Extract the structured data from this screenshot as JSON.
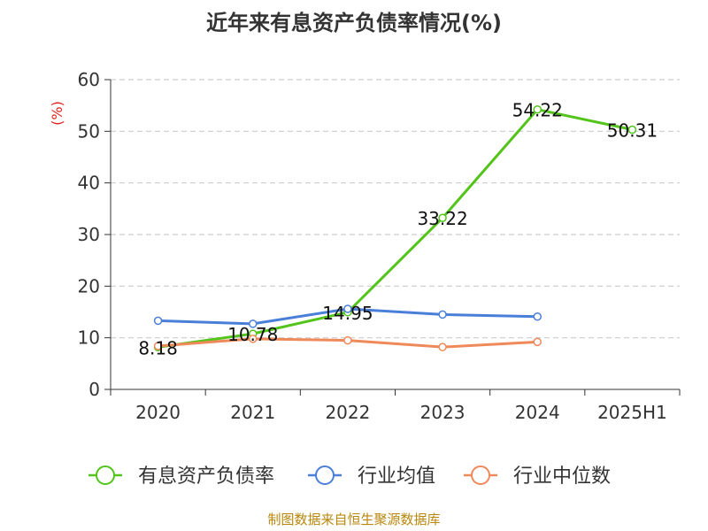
{
  "chart_data": {
    "type": "line",
    "title": "近年来有息资产负债率情况(%)",
    "ylabel": "(%)",
    "xlabel": "",
    "categories": [
      "2020",
      "2021",
      "2022",
      "2023",
      "2024",
      "2025H1"
    ],
    "ylim": [
      0,
      60
    ],
    "yticks": [
      0,
      10,
      20,
      30,
      40,
      50,
      60
    ],
    "grid": true,
    "legend_position": "bottom",
    "series": [
      {
        "name": "有息资产负债率",
        "color": "#52c41a",
        "values": [
          8.18,
          10.78,
          14.95,
          33.22,
          54.22,
          50.31
        ],
        "labels": [
          "8.18",
          "10.78",
          "14.95",
          "33.22",
          "54.22",
          "50.31"
        ]
      },
      {
        "name": "行业均值",
        "color": "#4a7fd9",
        "values": [
          13.3,
          12.7,
          15.6,
          14.5,
          14.1,
          null
        ]
      },
      {
        "name": "行业中位数",
        "color": "#f0895a",
        "values": [
          8.4,
          9.8,
          9.5,
          8.2,
          9.2,
          null
        ]
      }
    ]
  },
  "footer": {
    "source": "制图数据来自恒生聚源数据库"
  },
  "colors": {
    "ylabel": "#e02020",
    "axis": "#333333",
    "grid": "#cccccc",
    "source": "#b8860b"
  }
}
